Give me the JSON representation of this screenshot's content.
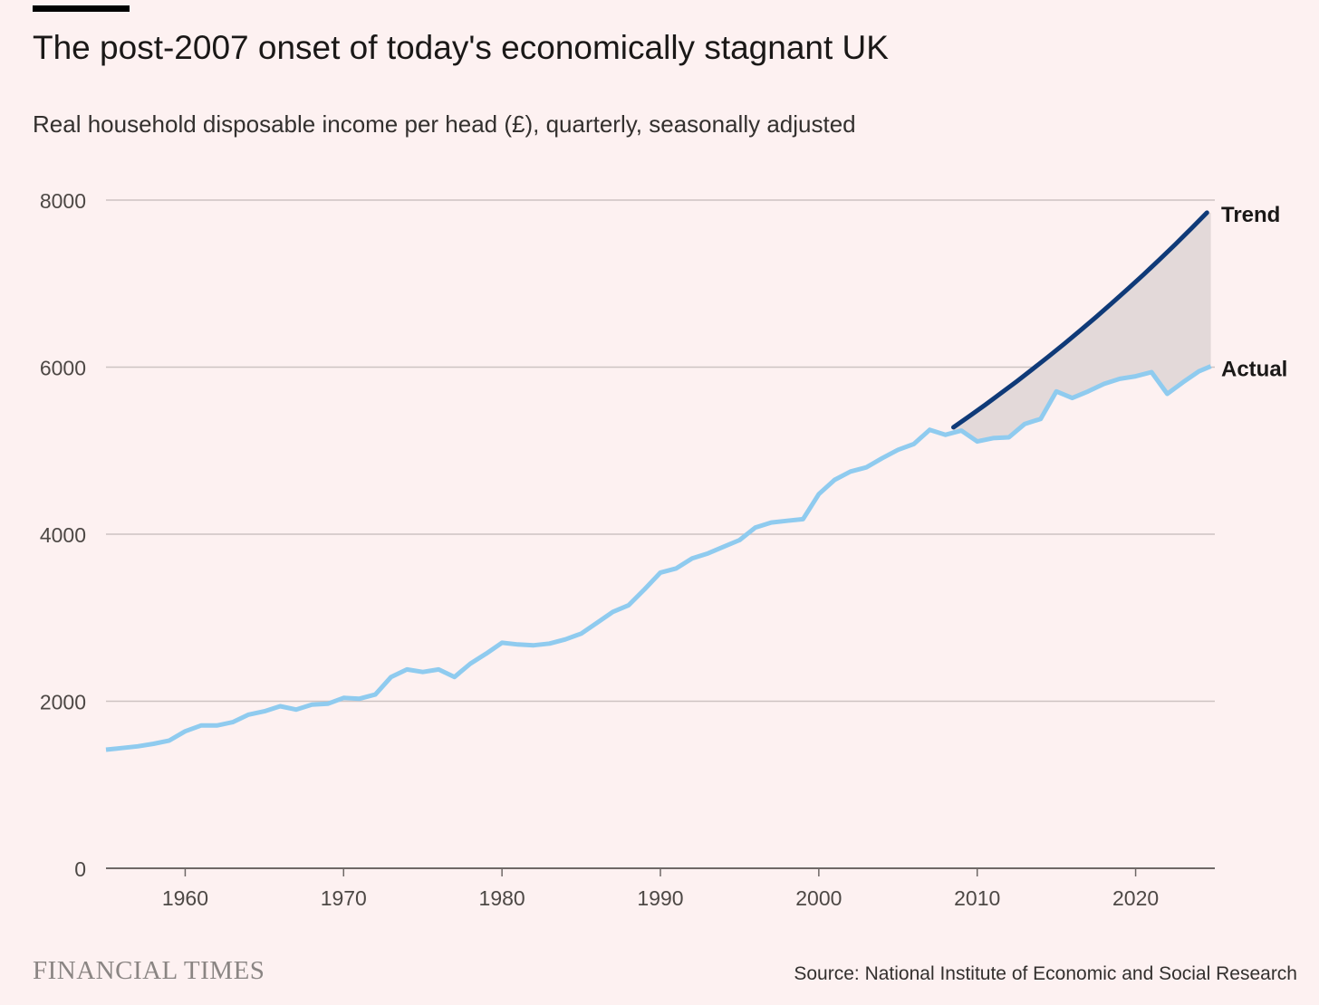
{
  "header": {
    "title": "The post-2007 onset of today's economically stagnant UK",
    "subtitle": "Real household disposable income per head (£), quarterly, seasonally adjusted"
  },
  "footer": {
    "logo": "FINANCIAL TIMES",
    "source": "Source: National Institute of Economic and Social Research"
  },
  "colors": {
    "actual": "#8fcbef",
    "trend": "#0f3a78",
    "gap_fill": "#e3d9d9",
    "grid": "#cdc3c2",
    "background": "#fdf1f1"
  },
  "chart_data": {
    "type": "line",
    "title": "The post-2007 onset of today's economically stagnant UK",
    "ylabel": "Real household disposable income per head (£)",
    "xlabel": "",
    "xlim": [
      1955,
      2025
    ],
    "ylim": [
      0,
      8000
    ],
    "yticks": [
      "0",
      "2000",
      "4000",
      "6000",
      "8000"
    ],
    "ytick_values": [
      0,
      2000,
      4000,
      6000,
      8000
    ],
    "xticks": [
      "1960",
      "1970",
      "1980",
      "1990",
      "2000",
      "2010",
      "2020"
    ],
    "xtick_values": [
      1960,
      1970,
      1980,
      1990,
      2000,
      2010,
      2020
    ],
    "grid": true,
    "series": [
      {
        "name": "Actual",
        "x": [
          1955,
          1956,
          1957,
          1958,
          1959,
          1960,
          1961,
          1962,
          1963,
          1964,
          1965,
          1966,
          1967,
          1968,
          1969,
          1970,
          1971,
          1972,
          1973,
          1974,
          1975,
          1976,
          1977,
          1978,
          1979,
          1980,
          1981,
          1982,
          1983,
          1984,
          1985,
          1986,
          1987,
          1988,
          1989,
          1990,
          1991,
          1992,
          1993,
          1994,
          1995,
          1996,
          1997,
          1998,
          1999,
          2000,
          2001,
          2002,
          2003,
          2004,
          2005,
          2006,
          2007,
          2008,
          2009,
          2010,
          2011,
          2012,
          2013,
          2014,
          2015,
          2016,
          2017,
          2018,
          2019,
          2020,
          2021,
          2022,
          2023,
          2024,
          2024.75
        ],
        "values": [
          1420,
          1440,
          1460,
          1490,
          1530,
          1640,
          1710,
          1710,
          1750,
          1840,
          1880,
          1940,
          1900,
          1960,
          1970,
          2040,
          2030,
          2080,
          2290,
          2380,
          2350,
          2380,
          2290,
          2450,
          2570,
          2700,
          2680,
          2670,
          2690,
          2740,
          2810,
          2940,
          3070,
          3150,
          3340,
          3540,
          3590,
          3710,
          3770,
          3850,
          3930,
          4080,
          4140,
          4160,
          4180,
          4480,
          4650,
          4750,
          4800,
          4910,
          5010,
          5080,
          5250,
          5190,
          5240,
          5110,
          5150,
          5160,
          5320,
          5380,
          5710,
          5630,
          5710,
          5800,
          5860,
          5890,
          5940,
          5680,
          5820,
          5950,
          6010
        ]
      },
      {
        "name": "Trend",
        "x": [
          2008.5,
          2009.5,
          2010.5,
          2011.5,
          2012.5,
          2013.5,
          2014.5,
          2015.5,
          2016.5,
          2017.5,
          2018.5,
          2019.5,
          2020.5,
          2021.5,
          2022.5,
          2023.5,
          2024.5
        ],
        "values": [
          5280,
          5413,
          5548,
          5688,
          5830,
          5977,
          6127,
          6280,
          6438,
          6599,
          6765,
          6934,
          7108,
          7287,
          7469,
          7657,
          7849
        ]
      }
    ]
  }
}
